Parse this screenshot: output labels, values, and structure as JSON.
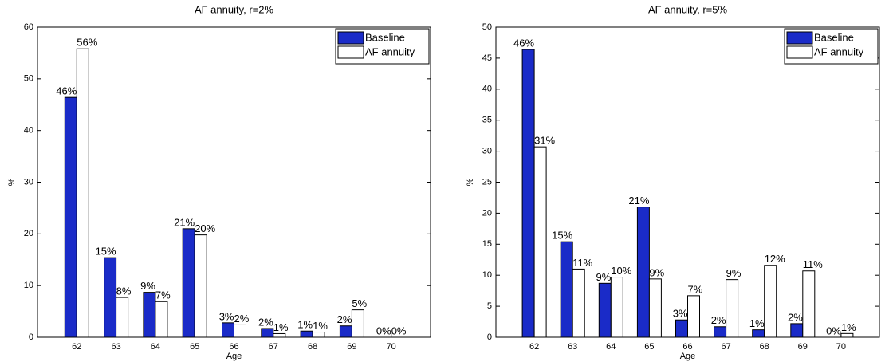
{
  "chart_data": [
    {
      "type": "bar",
      "title": "AF annuity, r=2%",
      "xlabel": "Age",
      "ylabel": "%",
      "categories": [
        "62",
        "63",
        "64",
        "65",
        "66",
        "67",
        "68",
        "69",
        "70"
      ],
      "series": [
        {
          "name": "Baseline",
          "color": "#1a2bc8",
          "label_color": "#000000",
          "values": [
            46.4,
            15.4,
            8.7,
            21.0,
            2.8,
            1.7,
            1.2,
            2.2,
            0
          ],
          "value_labels": [
            "46%",
            "15%",
            "9%",
            "21%",
            "3%",
            "2%",
            "1%",
            "2%",
            "0%"
          ]
        },
        {
          "name": "AF annuity",
          "color": "#ffffff",
          "label_color": "#2b2bdd",
          "values": [
            55.8,
            7.7,
            6.9,
            19.8,
            2.4,
            0.7,
            1.0,
            5.3,
            0
          ],
          "value_labels": [
            "56%",
            "8%",
            "7%",
            "20%",
            "2%",
            "1%",
            "1%",
            "5%",
            "0%"
          ]
        }
      ],
      "ylim": [
        0,
        60
      ],
      "yticks": [
        0,
        10,
        20,
        30,
        40,
        50,
        60
      ],
      "legend": "upper right"
    },
    {
      "type": "bar",
      "title": "AF annuity, r=5%",
      "xlabel": "Age",
      "ylabel": "%",
      "categories": [
        "62",
        "63",
        "64",
        "65",
        "66",
        "67",
        "68",
        "69",
        "70"
      ],
      "series": [
        {
          "name": "Baseline",
          "color": "#1a2bc8",
          "label_color": "#000000",
          "values": [
            46.4,
            15.4,
            8.7,
            21.0,
            2.8,
            1.7,
            1.2,
            2.2,
            0
          ],
          "value_labels": [
            "46%",
            "15%",
            "9%",
            "21%",
            "3%",
            "2%",
            "1%",
            "2%",
            "0%"
          ]
        },
        {
          "name": "AF annuity",
          "color": "#ffffff",
          "label_color": "#2b2bdd",
          "values": [
            30.7,
            11.0,
            9.7,
            9.4,
            6.7,
            9.3,
            11.6,
            10.7,
            0.6
          ],
          "value_labels": [
            "31%",
            "11%",
            "10%",
            "9%",
            "7%",
            "9%",
            "12%",
            "11%",
            "1%"
          ]
        }
      ],
      "ylim": [
        0,
        50
      ],
      "yticks": [
        0,
        5,
        10,
        15,
        20,
        25,
        30,
        35,
        40,
        45,
        50
      ],
      "legend": "upper right"
    }
  ]
}
